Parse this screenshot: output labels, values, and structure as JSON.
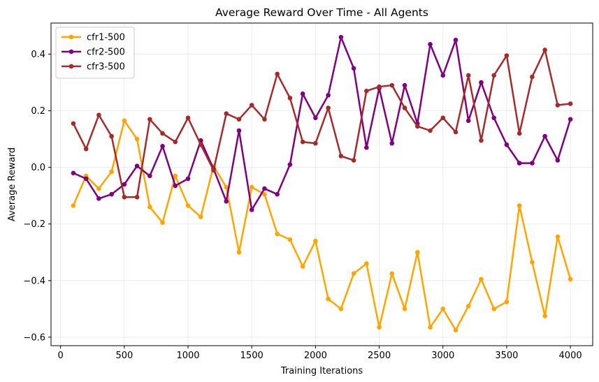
{
  "chart_data": {
    "type": "line",
    "title": "Average Reward Over Time - All Agents",
    "xlabel": "Training Iterations",
    "ylabel": "Average Reward",
    "xlim": [
      -75,
      4175
    ],
    "ylim": [
      -0.63,
      0.51
    ],
    "xticks": [
      0,
      500,
      1000,
      1500,
      2000,
      2500,
      3000,
      3500,
      4000
    ],
    "xtick_labels": [
      "0",
      "500",
      "1000",
      "1500",
      "2000",
      "2500",
      "3000",
      "3500",
      "4000"
    ],
    "yticks": [
      -0.6,
      -0.4,
      -0.2,
      0.0,
      0.2,
      0.4
    ],
    "ytick_labels": [
      "−0.6",
      "−0.4",
      "−0.2",
      "0.0",
      "0.2",
      "0.4"
    ],
    "grid": true,
    "legend_position": "top-left",
    "x": [
      100,
      200,
      300,
      400,
      500,
      600,
      700,
      800,
      900,
      1000,
      1100,
      1200,
      1300,
      1400,
      1500,
      1600,
      1700,
      1800,
      1900,
      2000,
      2100,
      2200,
      2300,
      2400,
      2500,
      2600,
      2700,
      2800,
      2900,
      3000,
      3100,
      3200,
      3300,
      3400,
      3500,
      3600,
      3700,
      3800,
      3900,
      4000
    ],
    "series": [
      {
        "name": "cfr1-500",
        "color": "#FFA500",
        "values": [
          -0.135,
          -0.03,
          -0.075,
          -0.015,
          0.165,
          0.1,
          -0.14,
          -0.195,
          -0.03,
          -0.135,
          -0.175,
          0.005,
          -0.07,
          -0.3,
          -0.07,
          -0.095,
          -0.235,
          -0.255,
          -0.35,
          -0.26,
          -0.465,
          -0.5,
          -0.375,
          -0.34,
          -0.565,
          -0.375,
          -0.5,
          -0.3,
          -0.565,
          -0.5,
          -0.575,
          -0.49,
          -0.395,
          -0.5,
          -0.475,
          -0.135,
          -0.335,
          -0.525,
          -0.245,
          -0.395
        ]
      },
      {
        "name": "cfr2-500",
        "color": "#800080",
        "values": [
          -0.02,
          -0.04,
          -0.11,
          -0.095,
          -0.06,
          0.005,
          -0.03,
          0.075,
          -0.065,
          -0.04,
          0.095,
          -0.005,
          -0.12,
          0.13,
          -0.15,
          -0.075,
          -0.095,
          0.01,
          0.26,
          0.175,
          0.255,
          0.46,
          0.35,
          0.07,
          0.28,
          0.085,
          0.29,
          0.155,
          0.435,
          0.325,
          0.45,
          0.165,
          0.3,
          0.175,
          0.08,
          0.015,
          0.015,
          0.11,
          0.025,
          0.17
        ]
      },
      {
        "name": "cfr3-500",
        "color": "#A52A2A",
        "values": [
          0.155,
          0.065,
          0.185,
          0.11,
          -0.105,
          -0.105,
          0.17,
          0.12,
          0.09,
          0.175,
          0.08,
          -0.01,
          0.19,
          0.17,
          0.22,
          0.17,
          0.33,
          0.245,
          0.09,
          0.085,
          0.21,
          0.04,
          0.025,
          0.27,
          0.285,
          0.29,
          0.21,
          0.145,
          0.13,
          0.175,
          0.125,
          0.325,
          0.095,
          0.325,
          0.395,
          0.12,
          0.32,
          0.415,
          0.22,
          0.225
        ]
      }
    ]
  }
}
